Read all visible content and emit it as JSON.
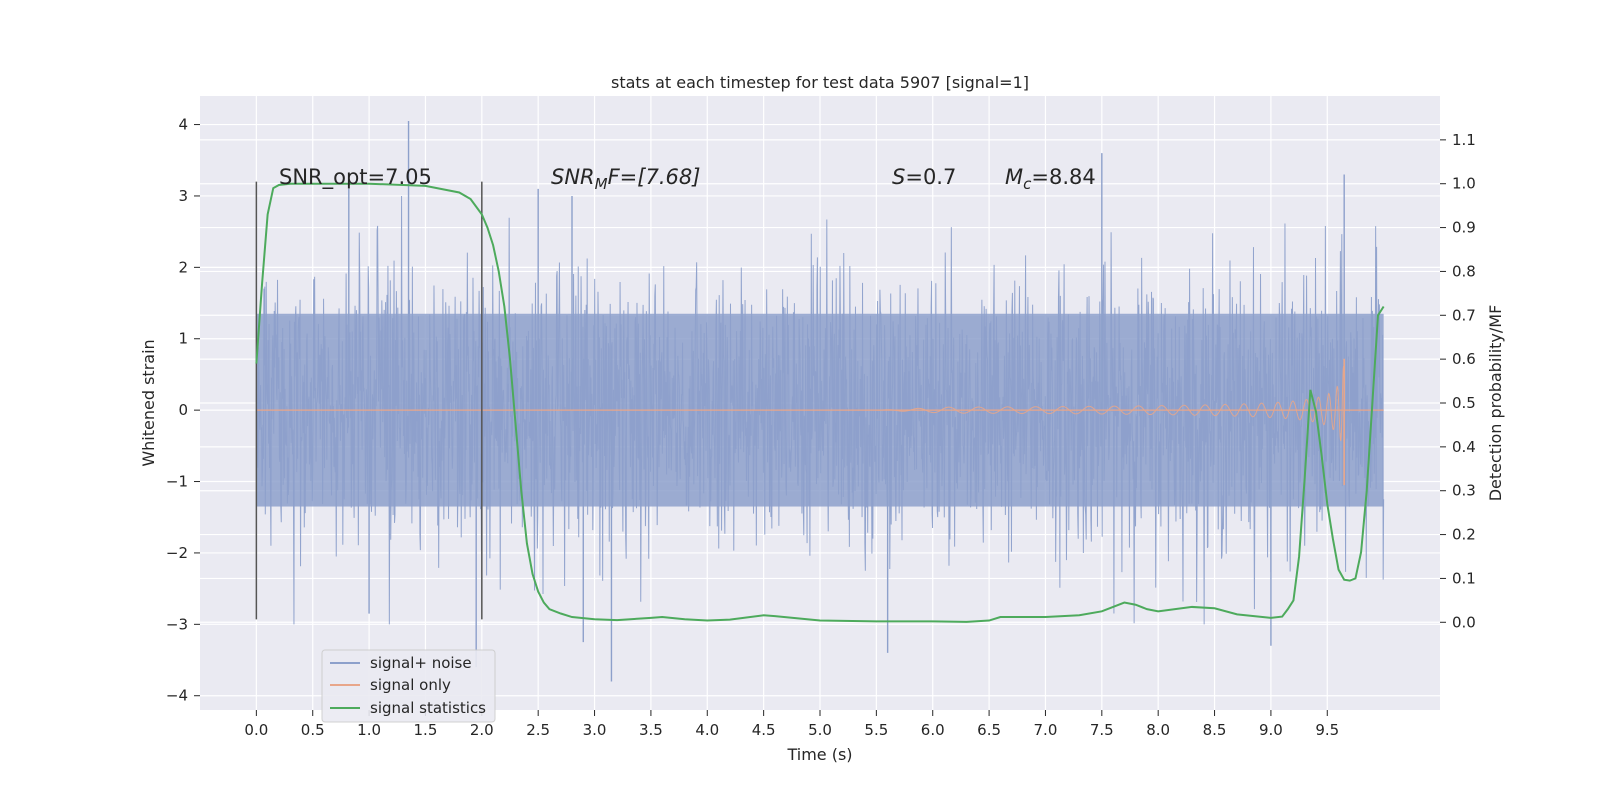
{
  "chart_data": {
    "type": "line",
    "title": "stats at each timestep for test data 5907 [signal=1]",
    "xlabel": "Time (s)",
    "ylabel": "Whitened strain",
    "y2label": "Detection probability/MF",
    "xlim": [
      -0.5,
      10.5
    ],
    "ylim": [
      -4.2,
      4.4
    ],
    "y2lim": [
      -0.2,
      1.2
    ],
    "x_ticks": [
      "0.0",
      "0.5",
      "1.0",
      "1.5",
      "2.0",
      "2.5",
      "3.0",
      "3.5",
      "4.0",
      "4.5",
      "5.0",
      "5.5",
      "6.0",
      "6.5",
      "7.0",
      "7.5",
      "8.0",
      "8.5",
      "9.0",
      "9.5"
    ],
    "y_ticks": [
      "4",
      "3",
      "2",
      "1",
      "0",
      "−1",
      "−2",
      "−3",
      "−4"
    ],
    "y2_ticks": [
      "1.1",
      "1.0",
      "0.9",
      "0.8",
      "0.7",
      "0.6",
      "0.5",
      "0.4",
      "0.3",
      "0.2",
      "0.1",
      "0.0"
    ],
    "grid": true,
    "legend_position": "lower-left",
    "annotations": {
      "snr_opt": "SNR_opt=7.05",
      "snr_mf": "SNR",
      "snr_mf_sub": "M",
      "snr_mf_tail": "F=[7.68]",
      "s_label": "S",
      "s_value": "=0.7",
      "mc_label": "M",
      "mc_sub": "c",
      "mc_value": "=8.84"
    },
    "window_markers": [
      0.0,
      2.0
    ],
    "series": [
      {
        "name": "signal+ noise",
        "color": "#8da0cb",
        "x_range": [
          0.0,
          10.0
        ],
        "envelope_typical": 1.35,
        "envelope_peak": 4.05,
        "peak_samples": [
          {
            "x": 1.35,
            "y": 4.05
          },
          {
            "x": 7.5,
            "y": 3.6
          },
          {
            "x": 9.65,
            "y": 3.3
          },
          {
            "x": 0.82,
            "y": 3.1
          },
          {
            "x": 2.5,
            "y": 3.1
          },
          {
            "x": 2.8,
            "y": 3.0
          },
          {
            "x": 3.15,
            "y": -3.8
          },
          {
            "x": 2.9,
            "y": -3.25
          },
          {
            "x": 1.95,
            "y": -3.6
          },
          {
            "x": 5.6,
            "y": -3.4
          },
          {
            "x": 9.0,
            "y": -3.3
          },
          {
            "x": 1.0,
            "y": -2.85
          }
        ]
      },
      {
        "name": "signal only",
        "color": "#e8a68a",
        "chirp_start": 5.5,
        "chirp_end": 9.65,
        "final_amplitude": 0.72
      },
      {
        "name": "signal statistics",
        "color": "#4daa5c",
        "axis": "y2",
        "x": [
          0.0,
          0.05,
          0.1,
          0.15,
          0.2,
          0.3,
          0.5,
          1.0,
          1.5,
          1.8,
          1.9,
          2.0,
          2.05,
          2.1,
          2.15,
          2.2,
          2.25,
          2.3,
          2.35,
          2.4,
          2.45,
          2.5,
          2.55,
          2.6,
          2.7,
          2.8,
          3.0,
          3.2,
          3.5,
          3.6,
          3.8,
          4.0,
          4.2,
          4.5,
          4.6,
          5.0,
          5.5,
          6.0,
          6.3,
          6.5,
          6.6,
          7.0,
          7.3,
          7.5,
          7.7,
          7.8,
          7.9,
          8.0,
          8.3,
          8.5,
          8.7,
          9.0,
          9.1,
          9.15,
          9.2,
          9.25,
          9.3,
          9.35,
          9.4,
          9.45,
          9.5,
          9.55,
          9.6,
          9.65,
          9.7,
          9.75,
          9.8,
          9.85,
          9.9,
          9.95,
          10.0
        ],
        "values": [
          0.59,
          0.77,
          0.93,
          0.99,
          0.997,
          1.0,
          1.0,
          1.0,
          0.995,
          0.98,
          0.965,
          0.93,
          0.9,
          0.86,
          0.8,
          0.72,
          0.6,
          0.45,
          0.3,
          0.18,
          0.11,
          0.07,
          0.045,
          0.03,
          0.02,
          0.012,
          0.007,
          0.005,
          0.01,
          0.012,
          0.007,
          0.004,
          0.006,
          0.016,
          0.014,
          0.004,
          0.002,
          0.002,
          0.001,
          0.004,
          0.012,
          0.012,
          0.016,
          0.025,
          0.045,
          0.04,
          0.03,
          0.025,
          0.035,
          0.032,
          0.018,
          0.01,
          0.013,
          0.03,
          0.05,
          0.15,
          0.33,
          0.53,
          0.48,
          0.38,
          0.27,
          0.19,
          0.12,
          0.097,
          0.095,
          0.1,
          0.16,
          0.3,
          0.5,
          0.7,
          0.72
        ]
      }
    ]
  }
}
